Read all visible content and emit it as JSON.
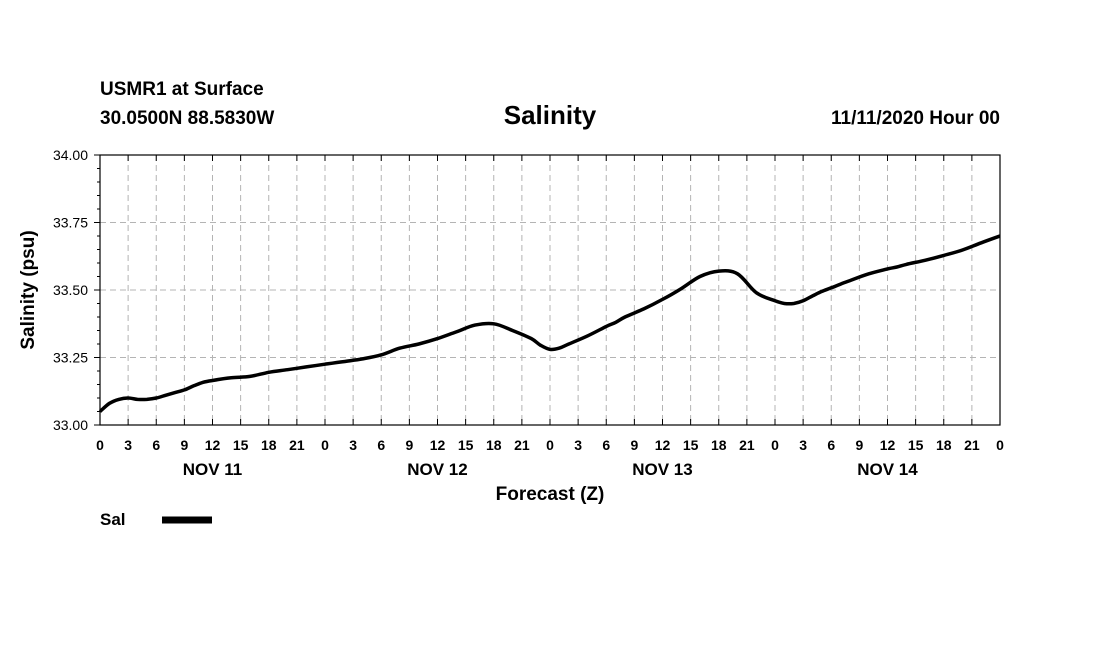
{
  "header": {
    "station": "USMR1 at Surface",
    "coords": "30.0500N 88.5830W",
    "title": "Salinity",
    "date": "11/11/2020 Hour 00"
  },
  "legend": {
    "label": "Sal"
  },
  "colors": {
    "line": "#000000",
    "grid": "#b4b4b4",
    "axis": "#000000"
  },
  "chart_data": {
    "type": "line",
    "title": "Salinity",
    "xlabel": "Forecast (Z)",
    "ylabel": "Salinity (psu)",
    "ylim": [
      33.0,
      34.0
    ],
    "xlim_hours": [
      0,
      96
    ],
    "yticks": [
      "33.00",
      "33.25",
      "33.50",
      "33.75",
      "34.00"
    ],
    "xtick_labels": [
      "0",
      "3",
      "6",
      "9",
      "12",
      "15",
      "18",
      "21",
      "0",
      "3",
      "6",
      "9",
      "12",
      "15",
      "18",
      "21",
      "0",
      "3",
      "6",
      "9",
      "12",
      "15",
      "18",
      "21",
      "0",
      "3",
      "6",
      "9",
      "12",
      "15",
      "18",
      "21",
      "0"
    ],
    "day_labels": [
      "NOV 11",
      "NOV 12",
      "NOV 13",
      "NOV 14"
    ],
    "grid": true,
    "legend_position": "bottom-left",
    "series": [
      {
        "name": "Sal",
        "x_hours": [
          0,
          1,
          2,
          3,
          4,
          5,
          6,
          7,
          8,
          9,
          10,
          11,
          12,
          14,
          16,
          18,
          20,
          22,
          24,
          26,
          28,
          30,
          32,
          34,
          36,
          38,
          40,
          42,
          44,
          46,
          47,
          48,
          49,
          50,
          52,
          54,
          55,
          56,
          58,
          60,
          62,
          64,
          66,
          68,
          70,
          72,
          73,
          74,
          75,
          76,
          77,
          78,
          79,
          80,
          82,
          84,
          85,
          86,
          88,
          90,
          92,
          94,
          96
        ],
        "values": [
          33.05,
          33.08,
          33.095,
          33.1,
          33.095,
          33.095,
          33.1,
          33.11,
          33.12,
          33.13,
          33.145,
          33.158,
          33.165,
          33.175,
          33.18,
          33.195,
          33.205,
          33.215,
          33.225,
          33.235,
          33.245,
          33.26,
          33.285,
          33.3,
          33.32,
          33.345,
          33.37,
          33.375,
          33.35,
          33.32,
          33.295,
          33.28,
          33.285,
          33.3,
          33.33,
          33.365,
          33.38,
          33.4,
          33.43,
          33.465,
          33.505,
          33.55,
          33.57,
          33.56,
          33.49,
          33.46,
          33.45,
          33.45,
          33.46,
          33.478,
          33.495,
          33.508,
          33.522,
          33.535,
          33.56,
          33.578,
          33.585,
          33.595,
          33.61,
          33.628,
          33.648,
          33.675,
          33.7
        ]
      }
    ]
  }
}
